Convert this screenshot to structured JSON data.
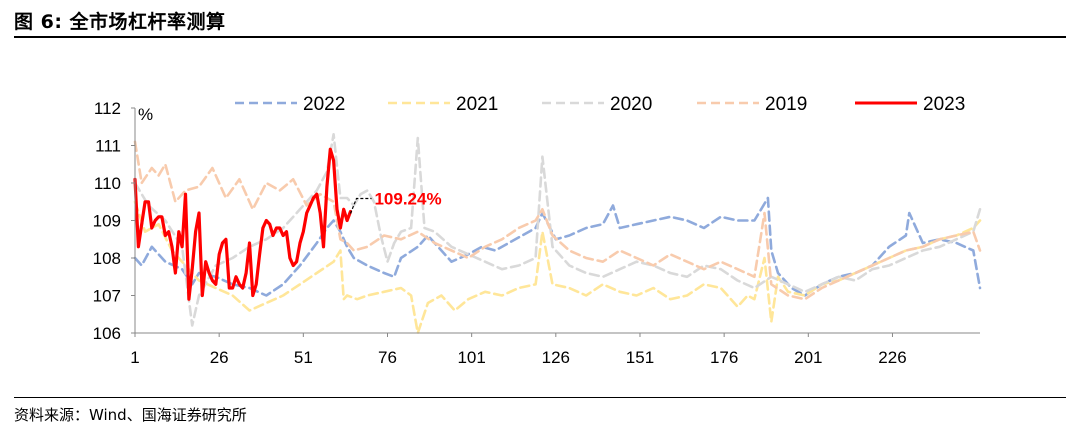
{
  "figure": {
    "title": "图 6:  全市场杠杆率测算",
    "source": "资料来源：Wind、国海证券研究所"
  },
  "chart_data": {
    "type": "line",
    "title": "",
    "xlabel": "",
    "ylabel": "%",
    "xlim": [
      1,
      252
    ],
    "ylim": [
      106,
      112
    ],
    "x_ticks": [
      1,
      26,
      51,
      76,
      101,
      126,
      151,
      176,
      201,
      226
    ],
    "y_ticks": [
      106,
      107,
      108,
      109,
      110,
      111,
      112
    ],
    "grid": false,
    "legend_position": "top",
    "annotation": {
      "series": "2023",
      "x": 65,
      "y": 109.24,
      "text": "109.24%",
      "color": "#ff0000"
    },
    "series": [
      {
        "name": "2022",
        "color": "#8faadc",
        "dash": true,
        "width": 2.6,
        "x": [
          1,
          3,
          6,
          10,
          15,
          18,
          20,
          25,
          30,
          35,
          40,
          45,
          50,
          55,
          58,
          60,
          62,
          64,
          66,
          70,
          75,
          78,
          80,
          85,
          88,
          90,
          95,
          100,
          104,
          108,
          112,
          116,
          120,
          122,
          126,
          130,
          135,
          140,
          143,
          145,
          150,
          155,
          160,
          165,
          170,
          175,
          180,
          185,
          189,
          190,
          192,
          196,
          200,
          205,
          210,
          215,
          220,
          225,
          230,
          231,
          235,
          240,
          245,
          250,
          252
        ],
        "y": [
          108.0,
          107.8,
          108.3,
          107.9,
          107.7,
          107.3,
          107.6,
          107.5,
          107.3,
          107.2,
          107.0,
          107.3,
          107.8,
          108.4,
          108.8,
          109.0,
          108.7,
          108.3,
          108.0,
          107.8,
          107.6,
          107.5,
          108.0,
          108.3,
          108.6,
          108.4,
          107.9,
          108.1,
          108.3,
          108.2,
          108.4,
          108.6,
          108.8,
          109.2,
          108.5,
          108.6,
          108.8,
          108.9,
          109.4,
          108.8,
          108.9,
          109.0,
          109.1,
          109.0,
          108.8,
          109.1,
          109.0,
          109.0,
          109.6,
          108.2,
          107.6,
          107.2,
          107.0,
          107.3,
          107.5,
          107.6,
          107.8,
          108.3,
          108.6,
          109.2,
          108.4,
          108.5,
          108.4,
          108.2,
          107.2
        ]
      },
      {
        "name": "2021",
        "color": "#ffe699",
        "dash": true,
        "width": 2.6,
        "x": [
          1,
          4,
          8,
          12,
          16,
          20,
          25,
          30,
          35,
          40,
          45,
          50,
          55,
          60,
          62,
          63,
          64,
          67,
          70,
          75,
          80,
          83,
          85,
          88,
          92,
          96,
          100,
          105,
          110,
          115,
          120,
          122,
          125,
          130,
          135,
          140,
          145,
          150,
          155,
          160,
          165,
          170,
          175,
          180,
          183,
          185,
          188,
          190,
          192,
          195,
          200,
          205,
          210,
          215,
          220,
          225,
          230,
          235,
          240,
          245,
          250,
          252
        ],
        "y": [
          109.5,
          108.7,
          108.9,
          108.2,
          107.8,
          107.4,
          107.2,
          107.0,
          106.6,
          106.8,
          107.0,
          107.3,
          107.6,
          107.9,
          108.2,
          106.9,
          107.0,
          106.9,
          107.0,
          107.1,
          107.2,
          107.0,
          106.0,
          106.8,
          107.0,
          106.6,
          106.9,
          107.1,
          107.0,
          107.2,
          107.3,
          108.7,
          107.3,
          107.2,
          107.0,
          107.3,
          107.1,
          107.0,
          107.2,
          106.9,
          107.0,
          107.3,
          107.2,
          106.7,
          107.0,
          106.9,
          108.0,
          106.3,
          107.5,
          107.1,
          107.0,
          107.3,
          107.4,
          107.6,
          107.8,
          108.0,
          108.2,
          108.3,
          108.5,
          108.6,
          108.8,
          109.0
        ]
      },
      {
        "name": "2020",
        "color": "#d9d9d9",
        "dash": true,
        "width": 2.6,
        "x": [
          1,
          5,
          10,
          15,
          18,
          20,
          25,
          30,
          35,
          40,
          45,
          50,
          55,
          58,
          60,
          62,
          64,
          66,
          68,
          70,
          72,
          74,
          76,
          78,
          80,
          83,
          85,
          87,
          90,
          95,
          100,
          105,
          110,
          115,
          120,
          122,
          125,
          130,
          135,
          140,
          145,
          150,
          155,
          160,
          165,
          170,
          175,
          180,
          185,
          190,
          195,
          200,
          205,
          210,
          215,
          220,
          225,
          230,
          235,
          240,
          245,
          250,
          252
        ],
        "y": [
          110.0,
          109.4,
          109.0,
          108.3,
          106.2,
          107.0,
          107.8,
          108.0,
          108.3,
          108.5,
          108.8,
          109.3,
          109.8,
          110.3,
          111.3,
          109.6,
          109.6,
          109.4,
          109.7,
          109.8,
          109.5,
          108.6,
          107.9,
          108.4,
          108.7,
          108.8,
          111.2,
          108.8,
          108.7,
          108.3,
          108.1,
          107.9,
          107.7,
          107.8,
          108.0,
          110.7,
          108.3,
          107.8,
          107.6,
          107.5,
          107.7,
          107.9,
          107.8,
          107.6,
          107.5,
          107.8,
          107.7,
          107.4,
          107.2,
          107.5,
          107.3,
          107.1,
          107.3,
          107.5,
          107.4,
          107.7,
          107.8,
          108.0,
          108.2,
          108.3,
          108.5,
          108.7,
          109.3
        ]
      },
      {
        "name": "2019",
        "color": "#f8cbad",
        "dash": true,
        "width": 2.6,
        "x": [
          1,
          3,
          6,
          8,
          10,
          13,
          16,
          20,
          24,
          28,
          32,
          36,
          40,
          44,
          48,
          52,
          56,
          60,
          62,
          64,
          66,
          70,
          75,
          80,
          85,
          90,
          95,
          100,
          105,
          110,
          115,
          120,
          122,
          125,
          130,
          135,
          140,
          145,
          150,
          155,
          160,
          165,
          170,
          175,
          180,
          185,
          188,
          190,
          195,
          200,
          205,
          210,
          215,
          220,
          225,
          230,
          235,
          240,
          245,
          250,
          252
        ],
        "y": [
          111.1,
          110.0,
          110.4,
          110.2,
          110.5,
          109.5,
          109.8,
          109.9,
          110.4,
          109.6,
          110.1,
          109.3,
          110.0,
          109.8,
          110.1,
          109.4,
          109.7,
          109.5,
          108.5,
          108.4,
          108.2,
          108.3,
          108.6,
          108.5,
          108.7,
          108.4,
          108.2,
          108.0,
          108.3,
          108.5,
          108.8,
          109.0,
          109.3,
          108.6,
          108.2,
          108.0,
          107.9,
          108.2,
          108.0,
          107.8,
          108.1,
          107.9,
          107.7,
          107.9,
          107.7,
          107.5,
          109.2,
          107.3,
          107.0,
          106.9,
          107.2,
          107.4,
          107.6,
          107.8,
          108.0,
          108.2,
          108.3,
          108.5,
          108.6,
          108.7,
          108.2
        ]
      },
      {
        "name": "2023",
        "color": "#ff0000",
        "dash": false,
        "width": 3.2,
        "x": [
          1,
          2,
          3,
          4,
          5,
          6,
          7,
          8,
          9,
          10,
          11,
          12,
          13,
          14,
          15,
          16,
          17,
          18,
          19,
          20,
          21,
          22,
          23,
          24,
          25,
          26,
          27,
          28,
          29,
          30,
          31,
          32,
          33,
          34,
          35,
          36,
          37,
          38,
          39,
          40,
          41,
          42,
          43,
          44,
          45,
          46,
          47,
          48,
          49,
          50,
          51,
          52,
          53,
          54,
          55,
          56,
          57,
          58,
          59,
          60,
          61,
          62,
          63,
          64,
          65
        ],
        "y": [
          110.1,
          108.3,
          108.9,
          109.5,
          109.5,
          108.8,
          109.0,
          109.1,
          109.1,
          108.6,
          108.7,
          108.3,
          107.6,
          108.7,
          108.3,
          109.7,
          106.9,
          107.7,
          108.7,
          109.2,
          107.0,
          107.9,
          107.6,
          107.4,
          107.3,
          108.1,
          108.4,
          108.5,
          107.2,
          107.2,
          107.5,
          107.3,
          107.2,
          107.6,
          108.4,
          107.0,
          107.3,
          108.1,
          108.8,
          109.0,
          108.9,
          108.6,
          108.8,
          108.8,
          108.6,
          108.7,
          108.0,
          107.8,
          107.9,
          108.4,
          108.7,
          109.2,
          109.4,
          109.6,
          109.7,
          109.2,
          108.3,
          109.9,
          110.9,
          110.6,
          109.3,
          108.8,
          109.3,
          109.0,
          109.24
        ]
      }
    ]
  }
}
